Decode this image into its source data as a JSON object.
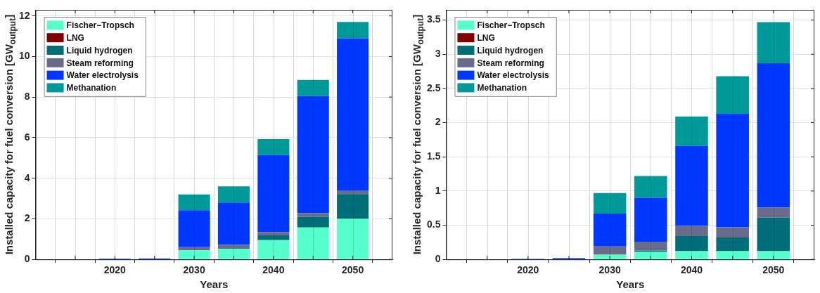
{
  "chart_data": [
    {
      "type": "bar",
      "stacked": true,
      "xlabel": "Years",
      "ylabel": "Installed capacity for fuel conversion [GW$_{output}$]",
      "x": [
        2020,
        2025,
        2030,
        2035,
        2040,
        2045,
        2050
      ],
      "xlim": [
        2010,
        2055
      ],
      "xticks": [
        {
          "value": 2015,
          "label": null
        },
        2020,
        {
          "value": 2025,
          "label": null
        },
        2030,
        {
          "value": 2035,
          "label": null
        },
        2040,
        {
          "value": 2045,
          "label": null
        },
        2050
      ],
      "ylim": [
        0,
        12.3
      ],
      "yticks": [
        0,
        2,
        4,
        6,
        8,
        10,
        12
      ],
      "grid": true,
      "legend": "top left",
      "series": [
        {
          "name": "Fischer−Tropsch",
          "color": "#55ffcc",
          "values": [
            0,
            0,
            0.45,
            0.53,
            0.95,
            1.57,
            2.0
          ]
        },
        {
          "name": "LNG",
          "color": "#800000",
          "values": [
            0,
            0,
            0,
            0,
            0,
            0,
            0
          ]
        },
        {
          "name": "Liquid hydrogen",
          "color": "#006e78",
          "values": [
            0,
            0,
            0,
            0,
            0.23,
            0.53,
            1.22
          ]
        },
        {
          "name": "Steam reforming",
          "color": "#696b8a",
          "values": [
            0,
            0,
            0.15,
            0.19,
            0.17,
            0.18,
            0.18
          ]
        },
        {
          "name": "Water electrolysis",
          "color": "#0037ff",
          "values": [
            0.04,
            0.05,
            1.82,
            2.08,
            3.8,
            5.77,
            7.5
          ]
        },
        {
          "name": "Methanation",
          "color": "#00999a",
          "values": [
            0,
            0,
            0.78,
            0.8,
            0.78,
            0.8,
            0.8
          ]
        }
      ]
    },
    {
      "type": "bar",
      "stacked": true,
      "xlabel": "Years",
      "ylabel": "Installed capacity for fuel conversion [GW$_{output}$]",
      "x": [
        2020,
        2025,
        2030,
        2035,
        2040,
        2045,
        2050
      ],
      "xlim": [
        2010,
        2055
      ],
      "xticks": [
        {
          "value": 2015,
          "label": null
        },
        2020,
        {
          "value": 2025,
          "label": null
        },
        2030,
        {
          "value": 2035,
          "label": null
        },
        2040,
        {
          "value": 2045,
          "label": null
        },
        2050
      ],
      "ylim": [
        0,
        3.65
      ],
      "yticks": [
        0,
        0.5,
        1,
        1.5,
        2,
        2.5,
        3,
        3.5
      ],
      "grid": true,
      "legend": "top left",
      "series": [
        {
          "name": "Fischer−Tropsch",
          "color": "#55ffcc",
          "values": [
            0,
            0,
            0.07,
            0.11,
            0.12,
            0.12,
            0.12
          ]
        },
        {
          "name": "LNG",
          "color": "#800000",
          "values": [
            0,
            0,
            0,
            0,
            0,
            0,
            0
          ]
        },
        {
          "name": "Liquid hydrogen",
          "color": "#006e78",
          "values": [
            0,
            0,
            0,
            0.02,
            0.22,
            0.2,
            0.49
          ]
        },
        {
          "name": "Steam reforming",
          "color": "#696b8a",
          "values": [
            0,
            0,
            0.12,
            0.13,
            0.15,
            0.15,
            0.15
          ]
        },
        {
          "name": "Water electrolysis",
          "color": "#0037ff",
          "values": [
            0.01,
            0.02,
            0.48,
            0.64,
            1.17,
            1.66,
            2.11
          ]
        },
        {
          "name": "Methanation",
          "color": "#00999a",
          "values": [
            0,
            0,
            0.3,
            0.32,
            0.43,
            0.55,
            0.6
          ]
        }
      ]
    }
  ]
}
